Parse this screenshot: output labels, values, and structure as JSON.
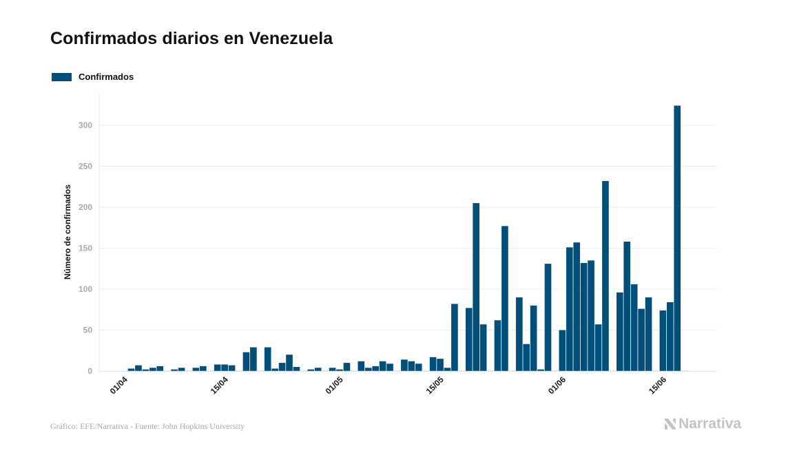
{
  "title": "Confirmados diarios en Venezuela",
  "legend": {
    "label": "Confirmados",
    "color": "#004f7a"
  },
  "footer": {
    "source": "Gráfico: EFE/Narrativa - Fuente: John Hopkins University",
    "brand": "Narrativa"
  },
  "chart_data": {
    "type": "bar",
    "title": "Confirmados diarios en Venezuela",
    "xlabel": "",
    "ylabel": "Número de confirmados",
    "ylim": [
      0,
      330
    ],
    "yticks": [
      0,
      50,
      100,
      150,
      200,
      250,
      300
    ],
    "grid": true,
    "legend_position": "top-left",
    "x_tick_labels": [
      {
        "label": "01/04",
        "index": 0
      },
      {
        "label": "15/04",
        "index": 14
      },
      {
        "label": "01/05",
        "index": 30
      },
      {
        "label": "15/05",
        "index": 44
      },
      {
        "label": "01/06",
        "index": 61
      },
      {
        "label": "15/06",
        "index": 75
      }
    ],
    "domain_days_before": 4,
    "domain_days_after": 4,
    "series": [
      {
        "name": "Confirmados",
        "color": "#004f7a",
        "categories": [
          "01/04",
          "02/04",
          "03/04",
          "04/04",
          "05/04",
          "06/04",
          "07/04",
          "08/04",
          "09/04",
          "10/04",
          "11/04",
          "12/04",
          "13/04",
          "14/04",
          "15/04",
          "16/04",
          "17/04",
          "18/04",
          "19/04",
          "20/04",
          "21/04",
          "22/04",
          "23/04",
          "24/04",
          "25/04",
          "26/04",
          "27/04",
          "28/04",
          "29/04",
          "30/04",
          "01/05",
          "02/05",
          "03/05",
          "04/05",
          "05/05",
          "06/05",
          "07/05",
          "08/05",
          "09/05",
          "10/05",
          "11/05",
          "12/05",
          "13/05",
          "14/05",
          "15/05",
          "16/05",
          "17/05",
          "18/05",
          "19/05",
          "20/05",
          "21/05",
          "22/05",
          "23/05",
          "24/05",
          "25/05",
          "26/05",
          "27/05",
          "28/05",
          "29/05",
          "30/05",
          "31/05",
          "01/06",
          "02/06",
          "03/06",
          "04/06",
          "05/06",
          "06/06",
          "07/06",
          "08/06",
          "09/06",
          "10/06",
          "11/06",
          "12/06",
          "13/06",
          "14/06",
          "15/06",
          "16/06",
          "17/06"
        ],
        "values": [
          3,
          7,
          2,
          4,
          6,
          0,
          2,
          4,
          0,
          4,
          6,
          0,
          8,
          8,
          7,
          0,
          23,
          29,
          0,
          29,
          3,
          10,
          20,
          5,
          0,
          2,
          4,
          0,
          4,
          2,
          10,
          0,
          12,
          4,
          6,
          12,
          9,
          0,
          14,
          12,
          9,
          0,
          17,
          15,
          4,
          82,
          0,
          77,
          205,
          57,
          0,
          62,
          177,
          0,
          90,
          33,
          80,
          2,
          131,
          0,
          50,
          151,
          157,
          132,
          135,
          57,
          232,
          0,
          96,
          158,
          106,
          76,
          90,
          0,
          74,
          84,
          324,
          0
        ]
      }
    ]
  }
}
